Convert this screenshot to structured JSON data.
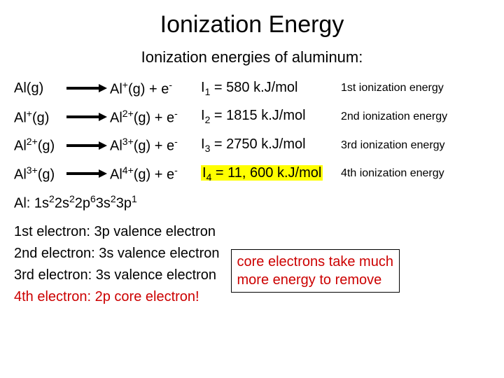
{
  "title": "Ionization Energy",
  "subtitle": "Ionization energies of aluminum:",
  "arrow_color": "#000000",
  "rows": [
    {
      "reactant_html": "Al(g)",
      "product_html": "Al<sup>+</sup>(g) + e<sup>-</sup>",
      "value_html": "I<sub>1</sub> = 580 k.J/mol",
      "desc": "1st ionization energy",
      "highlight": false
    },
    {
      "reactant_html": "Al<sup>+</sup>(g)",
      "product_html": "Al<sup>2+</sup>(g) + e<sup>-</sup>",
      "value_html": "I<sub>2</sub> = 1815 k.J/mol",
      "desc": "2nd ionization energy",
      "highlight": false
    },
    {
      "reactant_html": "Al<sup>2+</sup>(g)",
      "product_html": "Al<sup>3+</sup>(g) + e<sup>-</sup>",
      "value_html": "I<sub>3</sub> = 2750 k.J/mol",
      "desc": "3rd ionization energy",
      "highlight": false
    },
    {
      "reactant_html": "Al<sup>3+</sup>(g)",
      "product_html": "Al<sup>4+</sup>(g) + e<sup>-</sup>",
      "value_html": "I<sub>4</sub> = 11, 600 k.J/mol",
      "desc": "4th ionization energy",
      "highlight": true
    }
  ],
  "config_html": "Al: 1s<sup>2</sup>2s<sup>2</sup>2p<sup>6</sup>3s<sup>2</sup>3p<sup>1</sup>",
  "electrons": [
    {
      "text": "1st electron:  3p valence electron",
      "red": false
    },
    {
      "text": "2nd electron:  3s valence electron",
      "red": false
    },
    {
      "text": "3rd electron:  3s valence electron",
      "red": false
    },
    {
      "text": "4th electron:  2p core electron!",
      "red": true
    }
  ],
  "note_line1": "core electrons take much",
  "note_line2": "more energy to remove"
}
